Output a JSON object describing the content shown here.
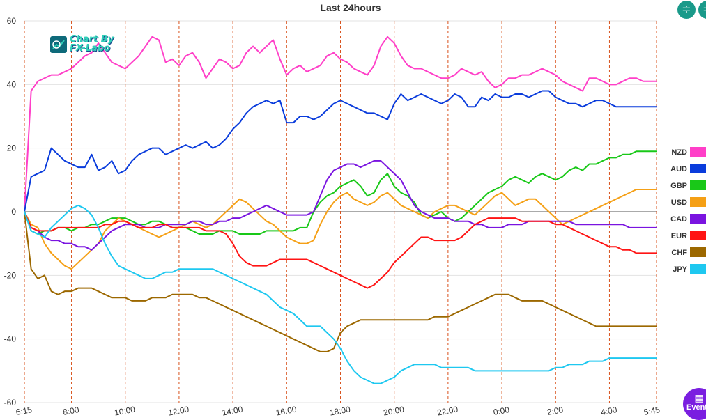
{
  "chart_data": {
    "type": "line",
    "title": "Last 24hours",
    "ylim": [
      -60,
      60
    ],
    "yticks": [
      60,
      40,
      20,
      0,
      -20,
      -40,
      -60
    ],
    "xlim": [
      0,
      94
    ],
    "xticks": [
      {
        "x": 0,
        "label": "6:15"
      },
      {
        "x": 7,
        "label": "8:00"
      },
      {
        "x": 15,
        "label": "10:00"
      },
      {
        "x": 23,
        "label": "12:00"
      },
      {
        "x": 31,
        "label": "14:00"
      },
      {
        "x": 39,
        "label": "16:00"
      },
      {
        "x": 47,
        "label": "18:00"
      },
      {
        "x": 55,
        "label": "20:00"
      },
      {
        "x": 63,
        "label": "22:00"
      },
      {
        "x": 71,
        "label": "0:00"
      },
      {
        "x": 79,
        "label": "2:00"
      },
      {
        "x": 87,
        "label": "4:00"
      },
      {
        "x": 94,
        "label": "5:45"
      }
    ],
    "legend_position": "right",
    "series": [
      {
        "name": "NZD",
        "color": "#ff3fc8",
        "values": [
          0,
          38,
          41,
          42,
          43,
          43,
          44,
          45,
          47,
          49,
          50,
          53,
          50,
          47,
          46,
          45,
          47,
          49,
          52,
          55,
          54,
          47,
          48,
          46,
          49,
          50,
          47,
          42,
          45,
          48,
          47,
          45,
          46,
          50,
          52,
          50,
          52,
          54,
          48,
          43,
          45,
          46,
          44,
          45,
          46,
          49,
          50,
          48,
          47,
          45,
          44,
          43,
          46,
          52,
          55,
          53,
          49,
          46,
          45,
          45,
          44,
          43,
          42,
          42,
          43,
          45,
          44,
          43,
          44,
          41,
          39,
          40,
          42,
          42,
          43,
          43,
          44,
          45,
          44,
          43,
          41,
          40,
          39,
          38,
          42,
          42,
          41,
          40,
          40,
          41,
          42,
          42,
          41,
          41,
          41
        ]
      },
      {
        "name": "AUD",
        "color": "#0a3cdc",
        "values": [
          0,
          11,
          12,
          13,
          20,
          18,
          16,
          15,
          14,
          14,
          18,
          13,
          14,
          16,
          12,
          13,
          16,
          18,
          19,
          20,
          20,
          18,
          19,
          20,
          21,
          20,
          21,
          22,
          20,
          21,
          23,
          26,
          28,
          31,
          33,
          34,
          35,
          34,
          35,
          28,
          28,
          30,
          30,
          29,
          30,
          32,
          34,
          35,
          34,
          33,
          32,
          31,
          31,
          30,
          29,
          34,
          37,
          35,
          36,
          37,
          36,
          35,
          34,
          35,
          37,
          36,
          33,
          33,
          36,
          35,
          37,
          36,
          36,
          37,
          37,
          36,
          37,
          38,
          38,
          36,
          35,
          34,
          34,
          33,
          34,
          35,
          35,
          34,
          33,
          33,
          33,
          33,
          33,
          33,
          33
        ]
      },
      {
        "name": "GBP",
        "color": "#19c818",
        "values": [
          0,
          -6,
          -7,
          -6,
          -6,
          -5,
          -5,
          -6,
          -5,
          -5,
          -4,
          -4,
          -3,
          -2,
          -2,
          -2,
          -3,
          -4,
          -4,
          -3,
          -3,
          -4,
          -5,
          -5,
          -5,
          -6,
          -7,
          -7,
          -7,
          -6,
          -6,
          -6,
          -7,
          -7,
          -7,
          -7,
          -6,
          -6,
          -6,
          -6,
          -6,
          -5,
          -5,
          0,
          3,
          5,
          6,
          8,
          9,
          10,
          8,
          5,
          6,
          10,
          12,
          8,
          6,
          5,
          3,
          -1,
          -2,
          -1,
          0,
          -2,
          -3,
          -2,
          0,
          2,
          4,
          6,
          7,
          8,
          10,
          11,
          10,
          9,
          11,
          12,
          11,
          10,
          11,
          13,
          14,
          13,
          15,
          15,
          16,
          17,
          17,
          18,
          18,
          19,
          19,
          19,
          19
        ]
      },
      {
        "name": "USD",
        "color": "#f5a016",
        "values": [
          0,
          -4,
          -5,
          -10,
          -13,
          -15,
          -17,
          -18,
          -16,
          -14,
          -12,
          -10,
          -6,
          -4,
          -2,
          -3,
          -4,
          -5,
          -6,
          -7,
          -8,
          -7,
          -6,
          -5,
          -4,
          -3,
          -4,
          -5,
          -4,
          -2,
          0,
          2,
          4,
          3,
          1,
          -1,
          -3,
          -4,
          -6,
          -8,
          -9,
          -10,
          -10,
          -9,
          -4,
          0,
          3,
          5,
          6,
          4,
          3,
          2,
          3,
          5,
          6,
          4,
          2,
          1,
          0,
          -1,
          -2,
          0,
          1,
          2,
          2,
          1,
          0,
          -1,
          1,
          3,
          5,
          6,
          4,
          2,
          3,
          4,
          4,
          2,
          0,
          -2,
          -4,
          -3,
          -2,
          -1,
          0,
          1,
          2,
          3,
          4,
          5,
          6,
          7,
          7,
          7,
          7
        ]
      },
      {
        "name": "CAD",
        "color": "#7a14e0",
        "values": [
          0,
          -5,
          -6,
          -8,
          -9,
          -9,
          -10,
          -10,
          -11,
          -11,
          -12,
          -10,
          -8,
          -6,
          -5,
          -4,
          -4,
          -4,
          -5,
          -5,
          -5,
          -4,
          -4,
          -4,
          -4,
          -3,
          -3,
          -4,
          -4,
          -3,
          -3,
          -2,
          -2,
          -1,
          0,
          1,
          2,
          1,
          0,
          -1,
          -1,
          -1,
          -1,
          0,
          5,
          10,
          13,
          14,
          15,
          15,
          14,
          15,
          16,
          16,
          14,
          12,
          10,
          6,
          2,
          0,
          -1,
          -2,
          -2,
          -2,
          -3,
          -3,
          -3,
          -4,
          -4,
          -5,
          -5,
          -5,
          -4,
          -4,
          -4,
          -3,
          -3,
          -3,
          -3,
          -3,
          -3,
          -3,
          -4,
          -4,
          -4,
          -4,
          -4,
          -4,
          -4,
          -4,
          -5,
          -5,
          -5,
          -5,
          -5
        ]
      },
      {
        "name": "EUR",
        "color": "#ff1414",
        "values": [
          0,
          -5,
          -6,
          -6,
          -6,
          -5,
          -5,
          -5,
          -5,
          -5,
          -5,
          -5,
          -4,
          -4,
          -3,
          -3,
          -4,
          -5,
          -5,
          -5,
          -4,
          -4,
          -5,
          -5,
          -5,
          -5,
          -5,
          -6,
          -6,
          -6,
          -7,
          -10,
          -14,
          -16,
          -17,
          -17,
          -17,
          -16,
          -15,
          -15,
          -15,
          -15,
          -15,
          -16,
          -17,
          -18,
          -19,
          -20,
          -21,
          -22,
          -23,
          -24,
          -23,
          -21,
          -19,
          -16,
          -14,
          -12,
          -10,
          -8,
          -8,
          -9,
          -9,
          -9,
          -9,
          -8,
          -6,
          -4,
          -3,
          -2,
          -2,
          -2,
          -2,
          -2,
          -3,
          -3,
          -3,
          -3,
          -3,
          -4,
          -4,
          -5,
          -6,
          -7,
          -8,
          -9,
          -10,
          -11,
          -11,
          -12,
          -12,
          -13,
          -13,
          -13,
          -13
        ]
      },
      {
        "name": "CHF",
        "color": "#9c6800",
        "values": [
          0,
          -18,
          -21,
          -20,
          -25,
          -26,
          -25,
          -25,
          -24,
          -24,
          -24,
          -25,
          -26,
          -27,
          -27,
          -27,
          -28,
          -28,
          -28,
          -27,
          -27,
          -27,
          -26,
          -26,
          -26,
          -26,
          -27,
          -27,
          -28,
          -29,
          -30,
          -31,
          -32,
          -33,
          -34,
          -35,
          -36,
          -37,
          -38,
          -39,
          -40,
          -41,
          -42,
          -43,
          -44,
          -44,
          -43,
          -38,
          -36,
          -35,
          -34,
          -34,
          -34,
          -34,
          -34,
          -34,
          -34,
          -34,
          -34,
          -34,
          -34,
          -33,
          -33,
          -33,
          -32,
          -31,
          -30,
          -29,
          -28,
          -27,
          -26,
          -26,
          -26,
          -27,
          -28,
          -28,
          -28,
          -28,
          -29,
          -30,
          -31,
          -32,
          -33,
          -34,
          -35,
          -36,
          -36,
          -36,
          -36,
          -36,
          -36,
          -36,
          -36,
          -36,
          -36
        ]
      },
      {
        "name": "JPY",
        "color": "#1ec8f0",
        "values": [
          0,
          -6,
          -7,
          -8,
          -5,
          -3,
          -1,
          1,
          2,
          1,
          -1,
          -5,
          -10,
          -14,
          -17,
          -18,
          -19,
          -20,
          -21,
          -21,
          -20,
          -19,
          -19,
          -18,
          -18,
          -18,
          -18,
          -18,
          -18,
          -19,
          -20,
          -21,
          -22,
          -23,
          -24,
          -25,
          -26,
          -28,
          -30,
          -31,
          -32,
          -34,
          -36,
          -36,
          -36,
          -38,
          -40,
          -43,
          -47,
          -50,
          -52,
          -53,
          -54,
          -54,
          -53,
          -52,
          -50,
          -49,
          -48,
          -48,
          -48,
          -48,
          -49,
          -49,
          -49,
          -49,
          -49,
          -50,
          -50,
          -50,
          -50,
          -50,
          -50,
          -50,
          -50,
          -50,
          -50,
          -50,
          -50,
          -49,
          -49,
          -48,
          -48,
          -48,
          -47,
          -47,
          -47,
          -46,
          -46,
          -46,
          -46,
          -46,
          -46,
          -46,
          -46
        ]
      }
    ]
  },
  "logo": {
    "line1": "Chart By",
    "line2": "FX-Labo"
  },
  "controls": {
    "events_label": "Event",
    "collapse_icon": "collapse-icon",
    "events_icon": "calendar-icon"
  }
}
